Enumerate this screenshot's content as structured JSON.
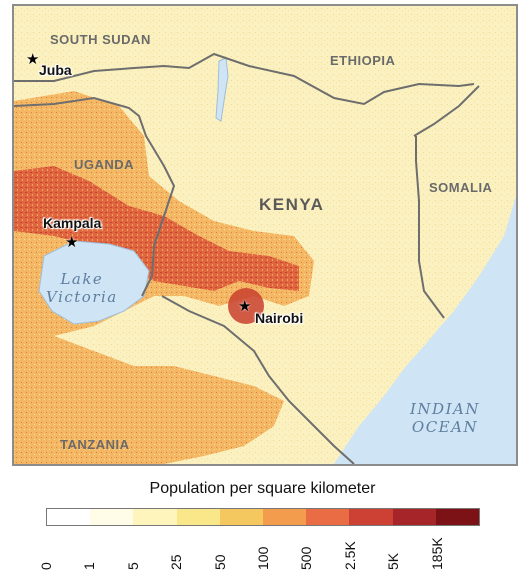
{
  "map": {
    "countries": [
      {
        "id": "south-sudan",
        "label": "SOUTH SUDAN"
      },
      {
        "id": "ethiopia",
        "label": "ETHIOPIA"
      },
      {
        "id": "uganda",
        "label": "UGANDA"
      },
      {
        "id": "kenya",
        "label": "KENYA"
      },
      {
        "id": "somalia",
        "label": "SOMALIA"
      },
      {
        "id": "tanzania",
        "label": "TANZANIA"
      }
    ],
    "water": [
      {
        "id": "lake-victoria",
        "line1": "Lake",
        "line2": "Victoria"
      },
      {
        "id": "indian-ocean",
        "line1": "INDIAN",
        "line2": "OCEAN"
      }
    ],
    "cities": [
      {
        "id": "juba",
        "label": "Juba"
      },
      {
        "id": "kampala",
        "label": "Kampala"
      },
      {
        "id": "nairobi",
        "label": "Nairobi"
      }
    ],
    "colors": {
      "water": "#cfe4f4",
      "border": "#6e6e6e",
      "low": "#fdf6c9",
      "mid": "#f5c86a",
      "high": "#e06040",
      "very_high": "#b53020"
    }
  },
  "legend": {
    "title": "Population per square kilometer",
    "colors": [
      "#ffffff",
      "#fffce8",
      "#fdf5bb",
      "#f9e78a",
      "#f5c75f",
      "#f39c4e",
      "#ea6c45",
      "#cd4134",
      "#a62528",
      "#7c1116"
    ],
    "ticks": [
      "0",
      "1",
      "5",
      "25",
      "50",
      "100",
      "500",
      "2.5K",
      "5K",
      "185K"
    ]
  }
}
